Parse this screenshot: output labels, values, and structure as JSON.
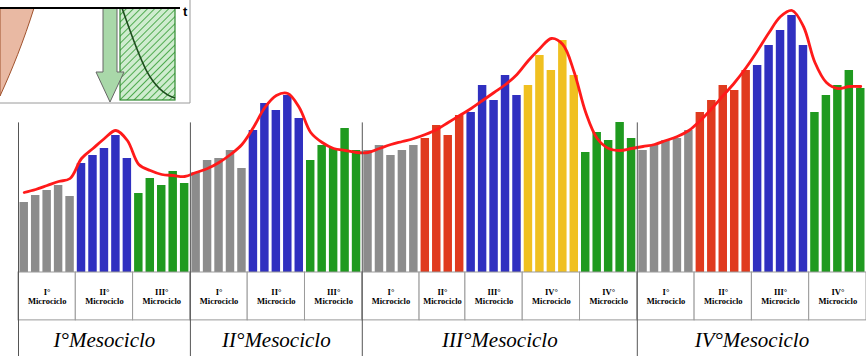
{
  "chart_data": {
    "type": "bar",
    "tick_labels": false,
    "ylim": [
      0,
      272
    ],
    "yticks": [],
    "inset_axis_label": "t",
    "line": {
      "type": "line",
      "color": "#ff1a1a",
      "line_style": "solid"
    },
    "mesocycles": [
      {
        "label": "I°Mesociclo",
        "microcycles": [
          {
            "label": "I° Microciclo",
            "color": "#8c8c8c",
            "values": [
              70,
              77,
              82,
              87,
              76
            ],
            "line_values": [
              80,
              83,
              87,
              91,
              94
            ]
          },
          {
            "label": "II° Microciclo",
            "color": "#3030c0",
            "values": [
              109,
              117,
              124,
              137,
              114
            ],
            "line_values": [
              114,
              124,
              134,
              142,
              132
            ]
          },
          {
            "label": "III° Microciclo",
            "color": "#1f9a1f",
            "values": [
              79,
              94,
              87,
              101,
              89
            ],
            "line_values": [
              108,
              102,
              98,
              97,
              96
            ]
          }
        ]
      },
      {
        "label": "II°Mesociclo",
        "microcycles": [
          {
            "label": "I° Microciclo",
            "color": "#8c8c8c",
            "values": [
              100,
              112,
              114,
              122,
              104
            ],
            "line_values": [
              100,
              104,
              110,
              118,
              128
            ]
          },
          {
            "label": "II° Microciclo",
            "color": "#3030c0",
            "values": [
              142,
              169,
              162,
              177,
              154
            ],
            "line_values": [
              145,
              165,
              177,
              179,
              165
            ]
          },
          {
            "label": "III° Microciclo",
            "color": "#1f9a1f",
            "values": [
              112,
              127,
              124,
              144,
              122
            ],
            "line_values": [
              140,
              130,
              124,
              122,
              120
            ]
          }
        ]
      },
      {
        "label": "III°Mesociclo",
        "microcycles": [
          {
            "label": "I° Microciclo",
            "color": "#8c8c8c",
            "values": [
              122,
              127,
              117,
              122,
              127
            ],
            "line_values": [
              120,
              124,
              128,
              131,
              134
            ]
          },
          {
            "label": "II° Microciclo",
            "color": "#e03a1e",
            "values": [
              134,
              147,
              137,
              157
            ],
            "line_values": [
              138,
              143,
              150,
              157
            ]
          },
          {
            "label": "III° Microciclo",
            "color": "#3030c0",
            "values": [
              160,
              187,
              172,
              197,
              177
            ],
            "line_values": [
              164,
              172,
              180,
              188,
              198
            ]
          },
          {
            "label": "IV° Microciclo",
            "color": "#f0c020",
            "values": [
              187,
              217,
              202,
              232,
              197
            ],
            "line_values": [
              212,
              224,
              234,
              228,
              200
            ]
          },
          {
            "label": "IV° Microciclo",
            "color": "#1f9a1f",
            "values": [
              120,
              140,
              132,
              150,
              134
            ],
            "line_values": [
              160,
              134,
              124,
              122,
              124
            ]
          }
        ]
      },
      {
        "label": "IV°Mesociclo",
        "microcycles": [
          {
            "label": "I° Microciclo",
            "color": "#8c8c8c",
            "values": [
              122,
              127,
              132,
              134,
              142
            ],
            "line_values": [
              126,
              128,
              132,
              136,
              142
            ]
          },
          {
            "label": "II° Microciclo",
            "color": "#e03a1e",
            "values": [
              160,
              172,
              187,
              182,
              202
            ],
            "line_values": [
              152,
              164,
              177,
              190,
              205
            ]
          },
          {
            "label": "III° Microciclo",
            "color": "#3030c0",
            "values": [
              207,
              227,
              242,
              257,
              227
            ],
            "line_values": [
              222,
              240,
              256,
              262,
              246
            ]
          },
          {
            "label": "IV° Microciclo",
            "color": "#1f9a1f",
            "values": [
              160,
              177,
              187,
              202,
              184
            ],
            "line_values": [
              210,
              190,
              184,
              186,
              186
            ]
          }
        ]
      }
    ]
  }
}
